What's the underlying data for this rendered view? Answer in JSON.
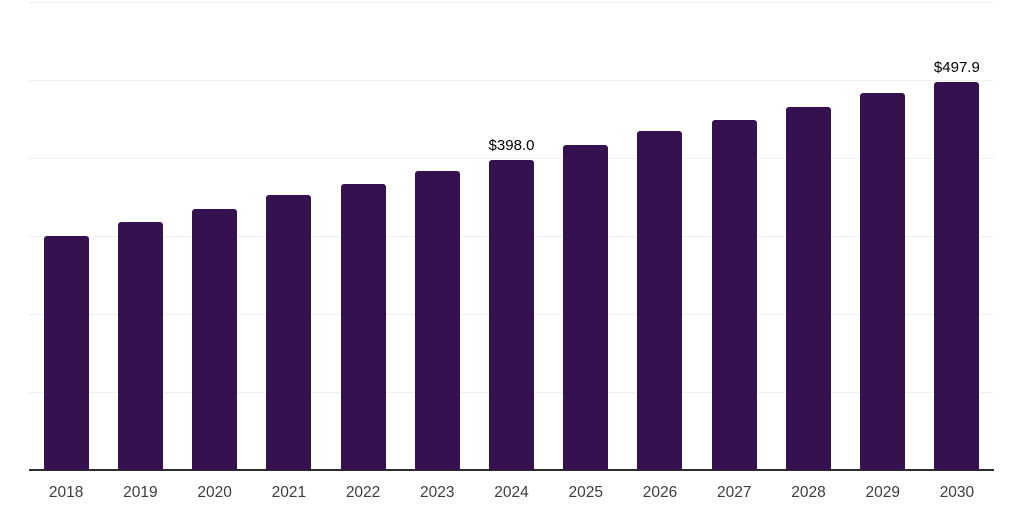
{
  "chart_data": {
    "type": "bar",
    "title": "",
    "xlabel": "",
    "ylabel": "",
    "categories": [
      "2018",
      "2019",
      "2020",
      "2021",
      "2022",
      "2023",
      "2024",
      "2025",
      "2026",
      "2027",
      "2028",
      "2029",
      "2030"
    ],
    "values": [
      299.4,
      317.9,
      334.4,
      352.4,
      366.9,
      383.9,
      398.0,
      416.9,
      434.3,
      448.9,
      465.9,
      483.0,
      497.9
    ],
    "data_labels": [
      {
        "index": 6,
        "category": "2024",
        "text": "$398.0"
      },
      {
        "index": 12,
        "category": "2030",
        "text": "$497.9"
      }
    ],
    "ylim": [
      0,
      600
    ],
    "grid_step": 100,
    "grid": true,
    "y_tick_labels_visible": false,
    "legend_position": "none"
  },
  "colors": {
    "bar": "#361150",
    "gridline": "#efefef",
    "axis_line": "#2d2d2d",
    "x_tick_text": "#3d3d3d",
    "value_label_text": "#000000",
    "background": "#ffffff"
  }
}
